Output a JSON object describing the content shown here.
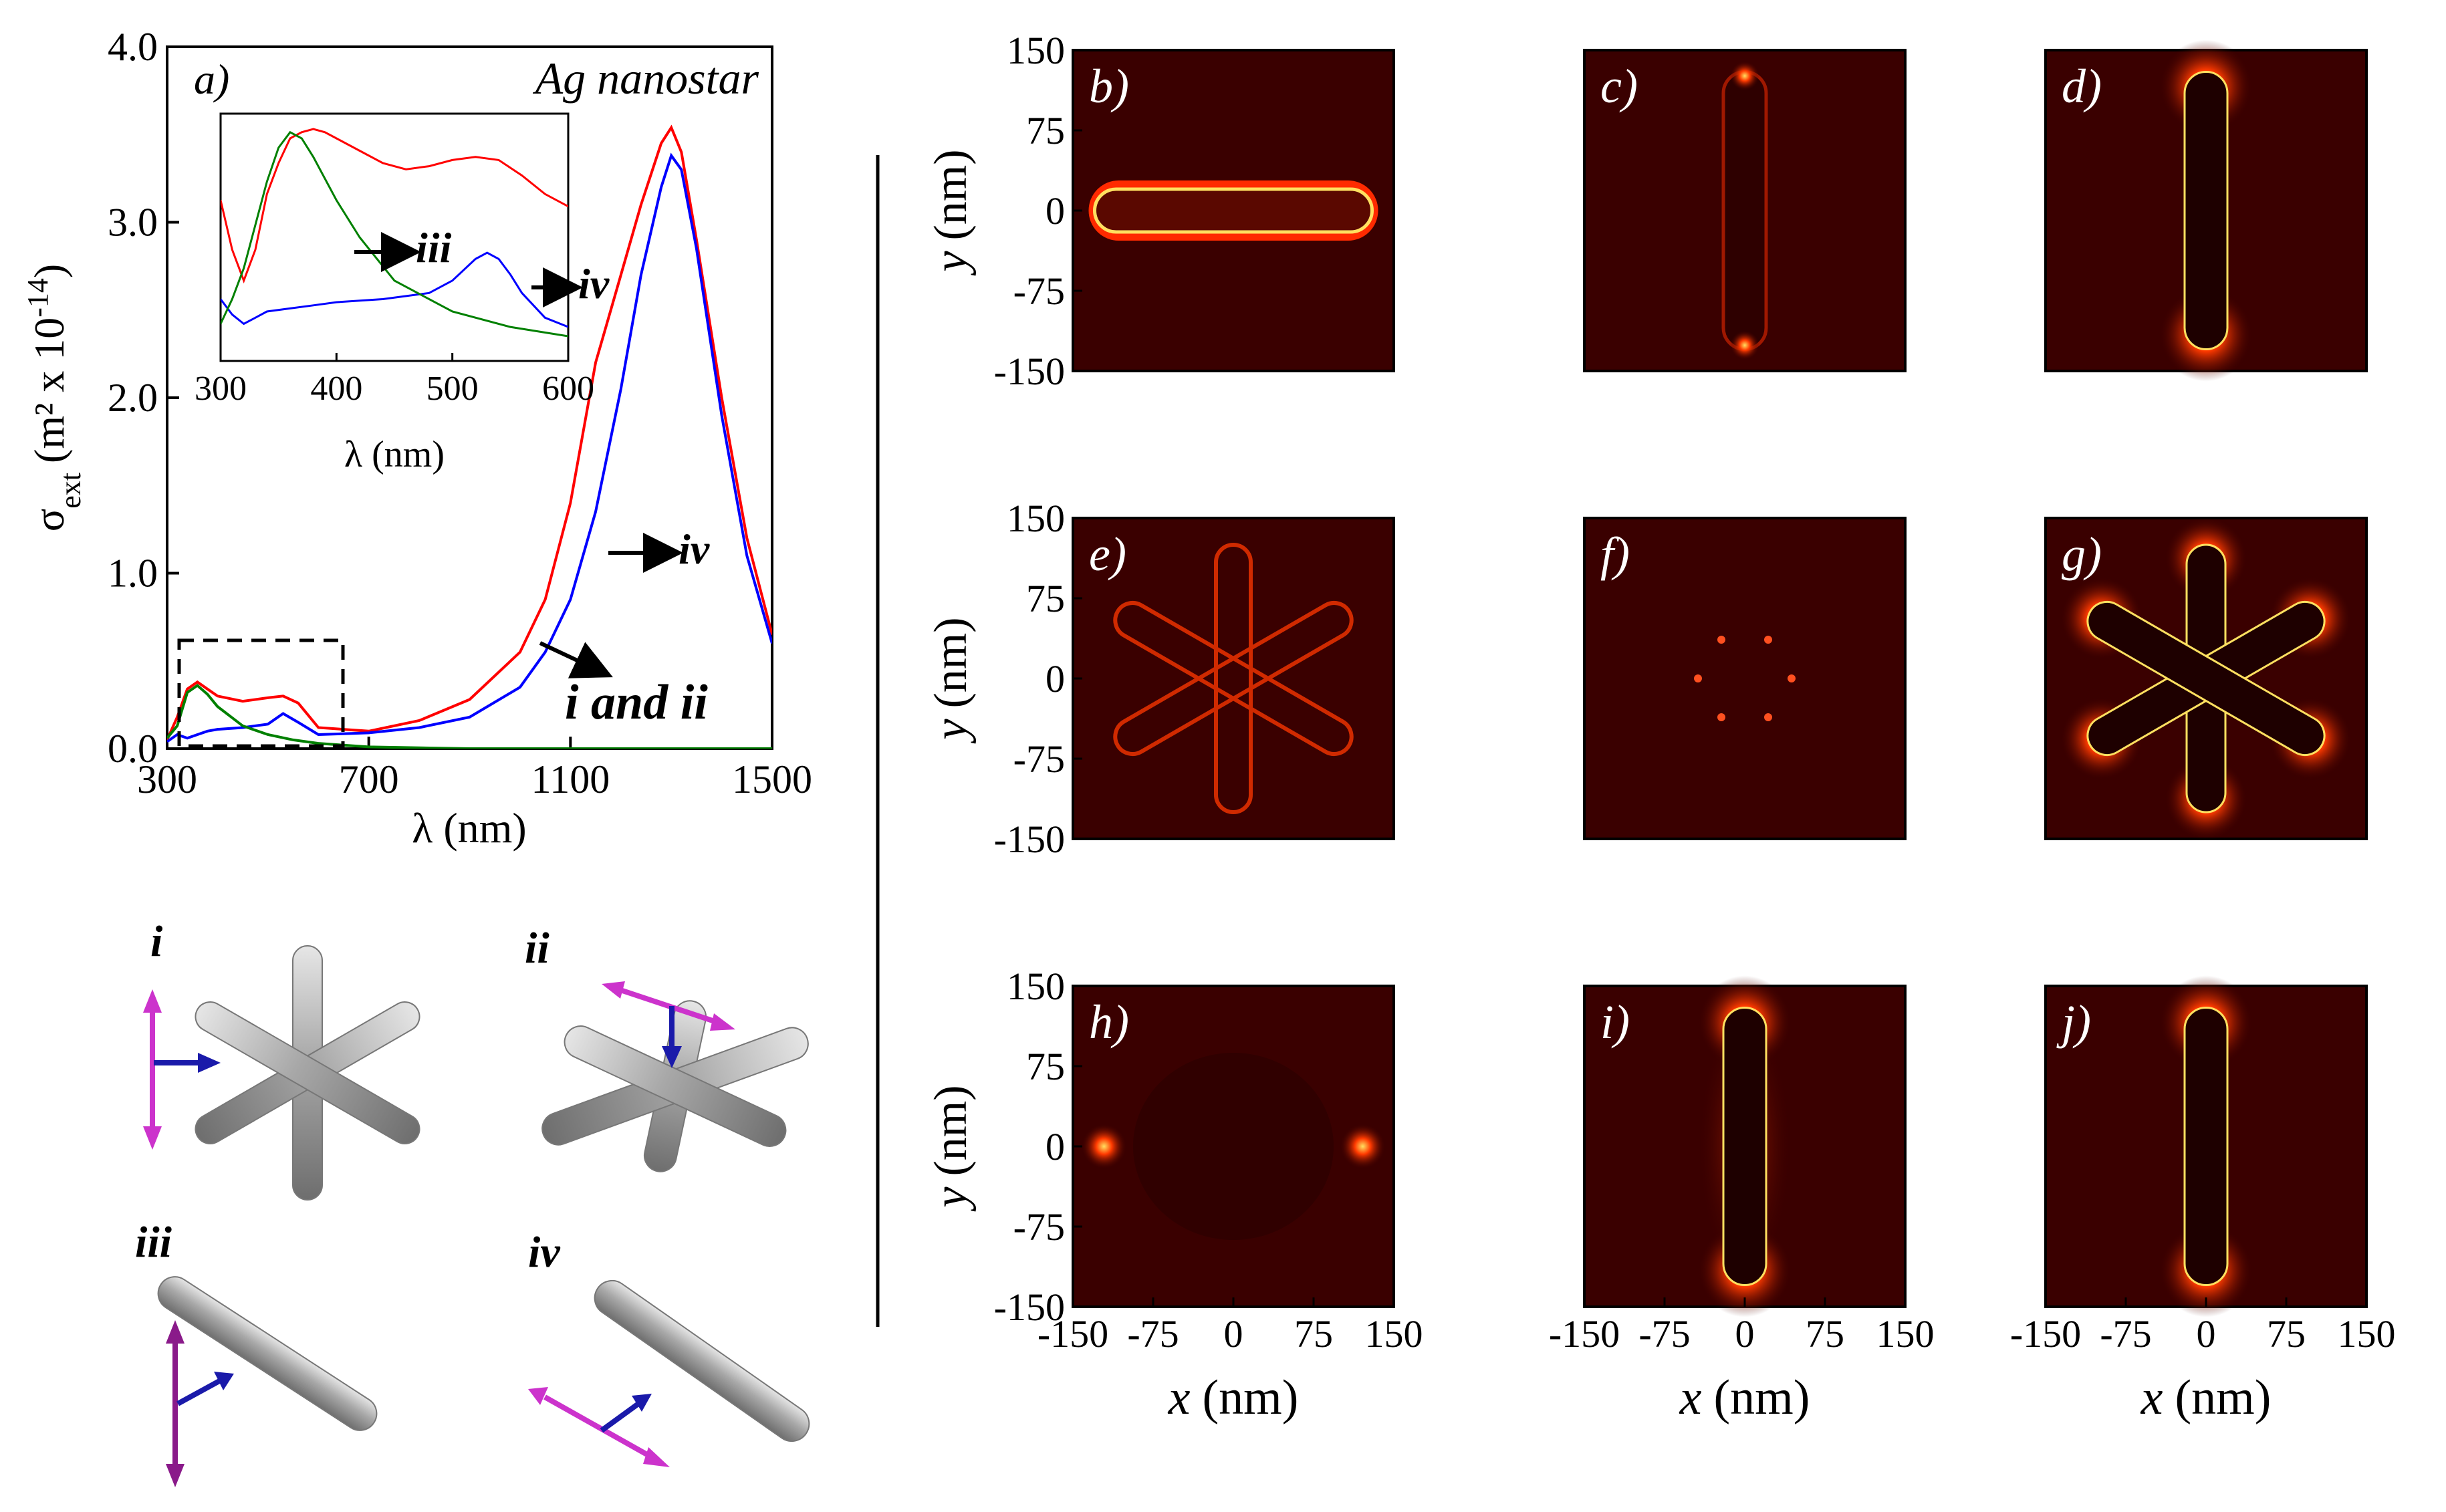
{
  "panel_a": {
    "label": "a)",
    "title": "Ag nanostar",
    "ylabel_sigma": "σ",
    "ylabel_sub": "ext",
    "ylabel_rest": "(m² x 10",
    "ylabel_exp": "-14",
    "ylabel_close": ")",
    "xlabel": "λ (nm)",
    "inset_xlabel": "λ (nm)",
    "annotations": {
      "iii": "iii",
      "iv_inset": "iv",
      "iv_main": "iv",
      "i_and_ii": "i and ii"
    },
    "line_colors": [
      "#ff0000",
      "#0000ff",
      "#008000"
    ]
  },
  "chart_data": [
    {
      "type": "line",
      "ylim": [
        0,
        4.0
      ],
      "xlim": [
        300,
        1500
      ],
      "xticks": [
        "300",
        "700",
        "1100",
        "1500"
      ],
      "yticks": [
        "0.0",
        "1.0",
        "2.0",
        "3.0",
        "4.0"
      ],
      "series": [
        {
          "color": "#ff0000",
          "x": [
            300,
            320,
            340,
            360,
            380,
            400,
            450,
            500,
            530,
            560,
            600,
            700,
            800,
            900,
            1000,
            1050,
            1100,
            1150,
            1180,
            1200,
            1240,
            1280,
            1300,
            1320,
            1350,
            1400,
            1450,
            1500
          ],
          "y": [
            0.05,
            0.18,
            0.34,
            0.38,
            0.34,
            0.3,
            0.27,
            0.29,
            0.3,
            0.26,
            0.12,
            0.1,
            0.16,
            0.28,
            0.55,
            0.85,
            1.4,
            2.2,
            2.5,
            2.7,
            3.1,
            3.45,
            3.54,
            3.4,
            2.9,
            2.0,
            1.2,
            0.65
          ]
        },
        {
          "color": "#0000ff",
          "x": [
            300,
            320,
            340,
            360,
            380,
            400,
            450,
            500,
            530,
            560,
            600,
            700,
            800,
            900,
            1000,
            1050,
            1100,
            1150,
            1200,
            1240,
            1280,
            1300,
            1320,
            1350,
            1400,
            1450,
            1500
          ],
          "y": [
            0.04,
            0.08,
            0.06,
            0.08,
            0.1,
            0.11,
            0.12,
            0.14,
            0.2,
            0.15,
            0.08,
            0.09,
            0.12,
            0.18,
            0.35,
            0.55,
            0.85,
            1.35,
            2.05,
            2.7,
            3.2,
            3.38,
            3.3,
            2.85,
            1.9,
            1.1,
            0.6
          ]
        },
        {
          "color": "#008000",
          "x": [
            300,
            320,
            340,
            360,
            380,
            400,
            450,
            500,
            550,
            600,
            700,
            900,
            1100,
            1500
          ],
          "y": [
            0.06,
            0.13,
            0.32,
            0.36,
            0.31,
            0.24,
            0.13,
            0.08,
            0.05,
            0.03,
            0.01,
            0.0,
            0.0,
            0.0
          ]
        }
      ]
    },
    {
      "type": "line",
      "xlim": [
        300,
        600
      ],
      "xticks": [
        "300",
        "400",
        "500",
        "600"
      ],
      "series": [
        {
          "color": "#ff0000",
          "x": [
            300,
            310,
            320,
            330,
            340,
            350,
            360,
            370,
            380,
            390,
            400,
            420,
            440,
            460,
            480,
            500,
            520,
            540,
            560,
            580,
            600
          ],
          "y": [
            0.26,
            0.18,
            0.13,
            0.18,
            0.27,
            0.32,
            0.36,
            0.37,
            0.375,
            0.37,
            0.36,
            0.34,
            0.32,
            0.31,
            0.315,
            0.325,
            0.33,
            0.325,
            0.3,
            0.27,
            0.25
          ]
        },
        {
          "color": "#0000ff",
          "x": [
            300,
            310,
            320,
            330,
            340,
            360,
            380,
            400,
            440,
            480,
            500,
            520,
            530,
            540,
            550,
            560,
            580,
            600
          ],
          "y": [
            0.1,
            0.075,
            0.06,
            0.07,
            0.08,
            0.085,
            0.09,
            0.095,
            0.1,
            0.11,
            0.13,
            0.165,
            0.175,
            0.165,
            0.14,
            0.11,
            0.07,
            0.055
          ]
        },
        {
          "color": "#008000",
          "x": [
            300,
            310,
            320,
            330,
            340,
            350,
            360,
            370,
            380,
            400,
            420,
            450,
            500,
            550,
            600
          ],
          "y": [
            0.06,
            0.1,
            0.15,
            0.22,
            0.29,
            0.345,
            0.37,
            0.36,
            0.33,
            0.26,
            0.2,
            0.13,
            0.08,
            0.055,
            0.04
          ]
        }
      ]
    }
  ],
  "structures": {
    "i": "i",
    "ii": "ii",
    "iii": "iii",
    "iv": "iv"
  },
  "maps": {
    "x_ticks": [
      "-150",
      "-75",
      "0",
      "75",
      "150"
    ],
    "y_ticks": [
      "150",
      "75",
      "0",
      "-75",
      "-150"
    ],
    "xlabel_var": "x",
    "xlabel_unit": "(nm)",
    "ylabel_var": "y",
    "ylabel_unit": "(nm)",
    "panels": [
      {
        "label": "b)",
        "shape": "horizontal-rod-edge"
      },
      {
        "label": "c)",
        "shape": "vertical-rod-dim"
      },
      {
        "label": "d)",
        "shape": "vertical-rod-ends"
      },
      {
        "label": "e)",
        "shape": "star-edge"
      },
      {
        "label": "f)",
        "shape": "star-center"
      },
      {
        "label": "g)",
        "shape": "star-tips"
      },
      {
        "label": "h)",
        "shape": "horizontal-rod-ends"
      },
      {
        "label": "i)",
        "shape": "vertical-rod-lobes"
      },
      {
        "label": "j)",
        "shape": "vertical-rod-ends"
      }
    ],
    "colors": {
      "background": "#3a0000",
      "glow": "#ff2a00",
      "hot": "#ffe060"
    }
  }
}
